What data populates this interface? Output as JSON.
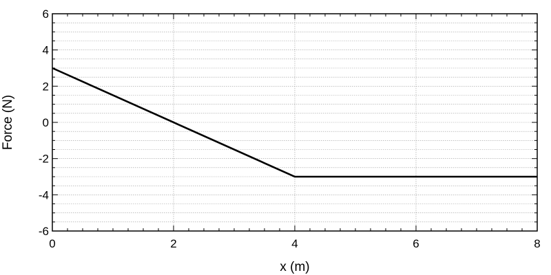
{
  "chart_data": {
    "type": "line",
    "title": "",
    "xlabel": "x (m)",
    "ylabel": "Force (N)",
    "xlim": [
      0,
      8
    ],
    "ylim": [
      -6,
      6
    ],
    "x_ticks": [
      0,
      2,
      4,
      6,
      8
    ],
    "y_ticks": [
      -6,
      -4,
      -2,
      0,
      2,
      4,
      6
    ],
    "x_tick_labels": [
      "0",
      "2",
      "4",
      "6",
      "8"
    ],
    "y_tick_labels": [
      "-6",
      "-4",
      "-2",
      "0",
      "2",
      "4",
      "6"
    ],
    "x_minor_step": 0.25,
    "y_minor_step": 0.5,
    "grid": true,
    "legend": "none",
    "series": [
      {
        "x": [
          0,
          4,
          8
        ],
        "y": [
          3,
          -3,
          -3
        ],
        "color": "#000000"
      }
    ]
  }
}
